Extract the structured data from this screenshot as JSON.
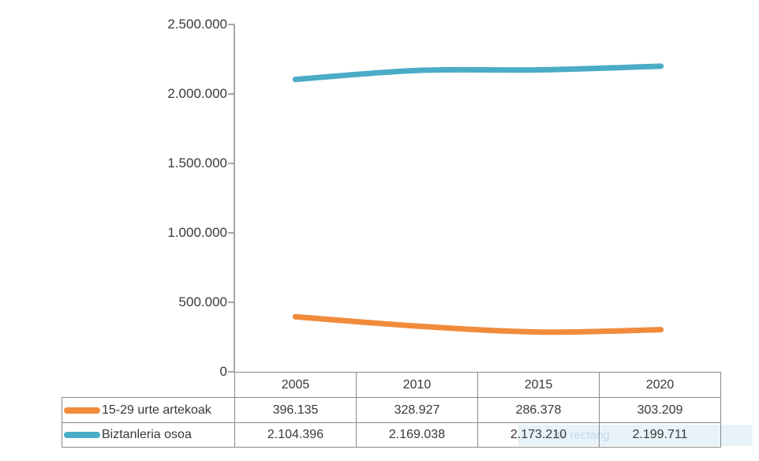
{
  "chart_data": {
    "type": "line",
    "title": "",
    "smooth": true,
    "grid": false,
    "legend_position": "table-left",
    "categories": [
      "2005",
      "2010",
      "2015",
      "2020"
    ],
    "series": [
      {
        "name": "15-29 urte artekoak",
        "color": "#F08B3C",
        "values": [
          396135,
          328927,
          286378,
          303209
        ],
        "value_labels": [
          "396.135",
          "328.927",
          "286.378",
          "303.209"
        ]
      },
      {
        "name": "Biztanleria osoa",
        "color": "#4BACC6",
        "values": [
          2104396,
          2169038,
          2173210,
          2199711
        ],
        "value_labels": [
          "2.104.396",
          "2.169.038",
          "2.173.210",
          "2.199.711"
        ]
      }
    ],
    "y_axis": {
      "min": 0,
      "max": 2500000,
      "tick_interval": 500000,
      "tick_labels": [
        "2.500.000",
        "2.000.000",
        "1.500.000",
        "1.000.000",
        "500.000",
        "0"
      ]
    }
  },
  "overlay": {
    "text": "rte rectang"
  },
  "colors": {
    "axis": "#8a8a8a",
    "table_border": "#8a8a8a",
    "series_orange": "#F08B3C",
    "series_teal": "#4BACC6",
    "overlay_bg": "#d6e7f4"
  }
}
